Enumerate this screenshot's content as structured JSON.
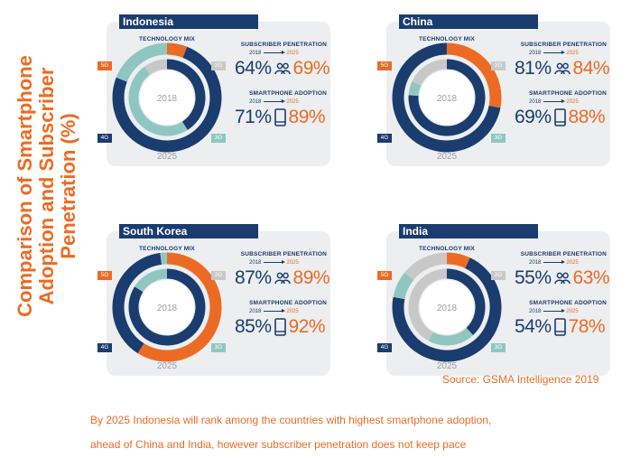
{
  "title": "Comparison of Smartphone Adoption and Subscriber Penetration (%)",
  "source": "Source: GSMA Intelligence 2019",
  "note_lines": [
    "By 2025 Indonesia will rank among the countries with highest smartphone adoption,",
    "ahead of China and India, however subscriber penetration does not keep pace"
  ],
  "labels": {
    "technology_mix": "TECHNOLOGY MIX",
    "subscriber_penetration": "SUBSCRIBER PENETRATION",
    "smartphone_adoption": "SMARTPHONE ADOPTION",
    "year_2018": "2018",
    "year_2025": "2025",
    "inner_ring": "2018",
    "outer_ring": "2025",
    "tag_5g": "5G",
    "tag_4g": "4G",
    "tag_3g": "3G",
    "tag_2g": "2G"
  },
  "colors": {
    "5G": "#ec6b24",
    "4G": "#1a3c6e",
    "3G": "#8fc6c2",
    "2G": "#c8c8c8",
    "panel_bg": "#eceef0",
    "accent": "#ec6b24",
    "navy": "#1a3c6e"
  },
  "chart_data": [
    {
      "type": "pie",
      "country": "Indonesia",
      "title": "TECHNOLOGY MIX",
      "rings": {
        "2018": {
          "5G": 0,
          "4G": 41,
          "3G": 49,
          "2G": 10
        },
        "2025": {
          "5G": 6,
          "4G": 75,
          "3G": 19,
          "2G": 0
        }
      },
      "subscriber_penetration": {
        "2018": "64%",
        "2025": "69%"
      },
      "smartphone_adoption": {
        "2018": "71%",
        "2025": "89%"
      }
    },
    {
      "type": "pie",
      "country": "China",
      "title": "TECHNOLOGY MIX",
      "rings": {
        "2018": {
          "5G": 0,
          "4G": 76,
          "3G": 6,
          "2G": 18
        },
        "2025": {
          "5G": 28,
          "4G": 72,
          "3G": 0,
          "2G": 0
        }
      },
      "subscriber_penetration": {
        "2018": "81%",
        "2025": "84%"
      },
      "smartphone_adoption": {
        "2018": "69%",
        "2025": "88%"
      }
    },
    {
      "type": "pie",
      "country": "South Korea",
      "title": "TECHNOLOGY MIX",
      "rings": {
        "2018": {
          "5G": 0,
          "4G": 84,
          "3G": 16,
          "2G": 0
        },
        "2025": {
          "5G": 59,
          "4G": 39,
          "3G": 2,
          "2G": 0
        }
      },
      "subscriber_penetration": {
        "2018": "87%",
        "2025": "89%"
      },
      "smartphone_adoption": {
        "2018": "85%",
        "2025": "92%"
      }
    },
    {
      "type": "pie",
      "country": "India",
      "title": "TECHNOLOGY MIX",
      "rings": {
        "2018": {
          "5G": 0,
          "4G": 38,
          "3G": 20,
          "2G": 42
        },
        "2025": {
          "5G": 7,
          "4G": 71,
          "3G": 8,
          "2G": 14
        }
      },
      "subscriber_penetration": {
        "2018": "55%",
        "2025": "63%"
      },
      "smartphone_adoption": {
        "2018": "54%",
        "2025": "78%"
      }
    }
  ]
}
